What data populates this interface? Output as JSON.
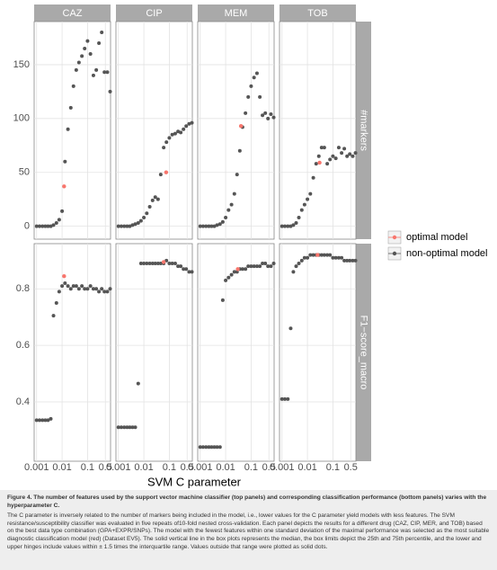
{
  "chart_data": {
    "type": "scatter",
    "xlabel": "SVM C parameter",
    "xlog": true,
    "xlim": [
      0.0008,
      0.8
    ],
    "xticks": [
      0.001,
      0.01,
      0.1,
      0.5
    ],
    "grid": true,
    "columns": [
      "CAZ",
      "CIP",
      "MEM",
      "TOB"
    ],
    "x": [
      0.001,
      0.0013,
      0.0017,
      0.0022,
      0.0028,
      0.0036,
      0.0046,
      0.006,
      0.0077,
      0.01,
      0.013,
      0.017,
      0.022,
      0.028,
      0.036,
      0.046,
      0.06,
      0.077,
      0.1,
      0.13,
      0.17,
      0.22,
      0.28,
      0.36,
      0.46,
      0.6,
      0.77
    ],
    "series": [
      {
        "name": "optimal model",
        "color": "#f8766d"
      },
      {
        "name": "non-optimal model",
        "color": "#555555"
      }
    ],
    "rows": [
      {
        "label": "#markers",
        "ylim": [
          -12,
          190
        ],
        "yticks": [
          0,
          50,
          100,
          150
        ],
        "panels": [
          {
            "values": [
              0,
              0,
              0,
              0,
              0,
              0,
              1,
              3,
              6,
              14,
              60,
              90,
              110,
              130,
              145,
              152,
              158,
              165,
              172,
              160,
              140,
              145,
              170,
              180,
              143,
              143,
              125
            ],
            "optimal": {
              "x": 0.012,
              "value": 37
            }
          },
          {
            "values": [
              0,
              0,
              0,
              0,
              0,
              1,
              2,
              3,
              5,
              8,
              12,
              18,
              24,
              27,
              25,
              48,
              73,
              78,
              82,
              85,
              86,
              88,
              87,
              90,
              93,
              95,
              96
            ],
            "optimal": {
              "x": 0.075,
              "value": 50
            }
          },
          {
            "values": [
              0,
              0,
              0,
              0,
              0,
              0,
              1,
              2,
              4,
              8,
              15,
              20,
              30,
              48,
              70,
              92,
              105,
              120,
              130,
              138,
              142,
              120,
              103,
              105,
              100,
              104,
              101
            ],
            "optimal": {
              "x": 0.04,
              "value": 93
            }
          },
          {
            "values": [
              0,
              0,
              0,
              0,
              1,
              3,
              8,
              15,
              20,
              25,
              30,
              45,
              58,
              65,
              73,
              73,
              58,
              62,
              65,
              63,
              73,
              68,
              72,
              65,
              67,
              65,
              68
            ],
            "optimal": {
              "x": 0.03,
              "value": 59
            }
          }
        ]
      },
      {
        "label": "F1−score_macro",
        "ylim": [
          0.19,
          0.96
        ],
        "yticks": [
          0.4,
          0.6,
          0.8
        ],
        "panels": [
          {
            "values": [
              0.335,
              0.335,
              0.335,
              0.335,
              0.335,
              0.34,
              0.705,
              0.75,
              0.79,
              0.81,
              0.82,
              0.81,
              0.8,
              0.81,
              0.81,
              0.8,
              0.81,
              0.8,
              0.8,
              0.81,
              0.8,
              0.8,
              0.79,
              0.8,
              0.79,
              0.79,
              0.8
            ],
            "optimal": {
              "x": 0.012,
              "value": 0.845
            }
          },
          {
            "values": [
              0.31,
              0.31,
              0.31,
              0.31,
              0.31,
              0.31,
              0.31,
              0.465,
              0.89,
              0.89,
              0.89,
              0.89,
              0.89,
              0.89,
              0.89,
              0.89,
              0.89,
              0.9,
              0.89,
              0.89,
              0.89,
              0.88,
              0.88,
              0.87,
              0.87,
              0.86,
              0.86
            ],
            "optimal": {
              "x": 0.06,
              "value": 0.895
            }
          },
          {
            "values": [
              0.24,
              0.24,
              0.24,
              0.24,
              0.24,
              0.24,
              0.24,
              0.24,
              0.76,
              0.83,
              0.84,
              0.85,
              0.86,
              0.86,
              0.87,
              0.87,
              0.87,
              0.88,
              0.88,
              0.88,
              0.88,
              0.88,
              0.89,
              0.89,
              0.88,
              0.88,
              0.89
            ],
            "optimal": {
              "x": 0.03,
              "value": 0.87
            }
          },
          {
            "values": [
              0.41,
              0.41,
              0.41,
              0.66,
              0.86,
              0.88,
              0.89,
              0.9,
              0.91,
              0.91,
              0.92,
              0.92,
              0.92,
              0.92,
              0.92,
              0.92,
              0.92,
              0.92,
              0.91,
              0.91,
              0.91,
              0.91,
              0.9,
              0.9,
              0.9,
              0.9,
              0.9
            ],
            "optimal": {
              "x": 0.025,
              "value": 0.92
            }
          }
        ]
      }
    ]
  },
  "caption": {
    "title": "Figure 4.   The number of features used by the support vector machine classifier (top panels) and corresponding classification performance (bottom panels) varies with the hyperparameter C.",
    "text": "The C parameter is inversely related to the number of markers being included in the model, i.e., lower values for the C parameter yield models with less features. The SVM resistance/susceptibility classifier was evaluated in five repeats of10-fold nested cross-validation. Each panel depicts the results for a different drug (CAZ, CIP, MER, and TOB) based on the best data type combination (GPA+EXPR/SNPs). The model with the fewest features within one standard deviation of the maximal performance was selected as the most suitable diagnostic classification model (red) (Dataset EV5). The solid vertical line in the box plots represents the median, the box limits depict the 25th and 75th percentile, and the lower and upper hinges include values within ± 1.5 times the interquartile range. Values outside that range were plotted as solid dots."
  }
}
